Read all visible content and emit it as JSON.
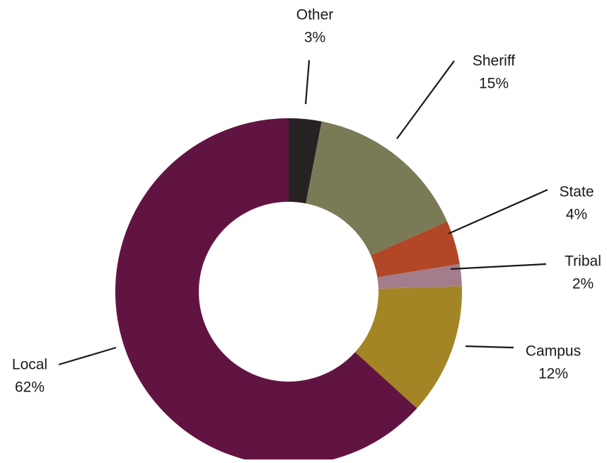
{
  "chart_data": {
    "type": "pie",
    "donut": true,
    "title": "",
    "legend": "none",
    "slices": [
      {
        "name": "Other",
        "value": 3,
        "label": "3%",
        "color": "#262223"
      },
      {
        "name": "Sheriff",
        "value": 15,
        "label": "15%",
        "color": "#7a7a57"
      },
      {
        "name": "State",
        "value": 4,
        "label": "4%",
        "color": "#b14727"
      },
      {
        "name": "Tribal",
        "value": 2,
        "label": "2%",
        "color": "#a47d8c"
      },
      {
        "name": "Campus",
        "value": 12,
        "label": "12%",
        "color": "#a48525"
      },
      {
        "name": "Local",
        "value": 62,
        "label": "62%",
        "color": "#611442"
      }
    ]
  }
}
